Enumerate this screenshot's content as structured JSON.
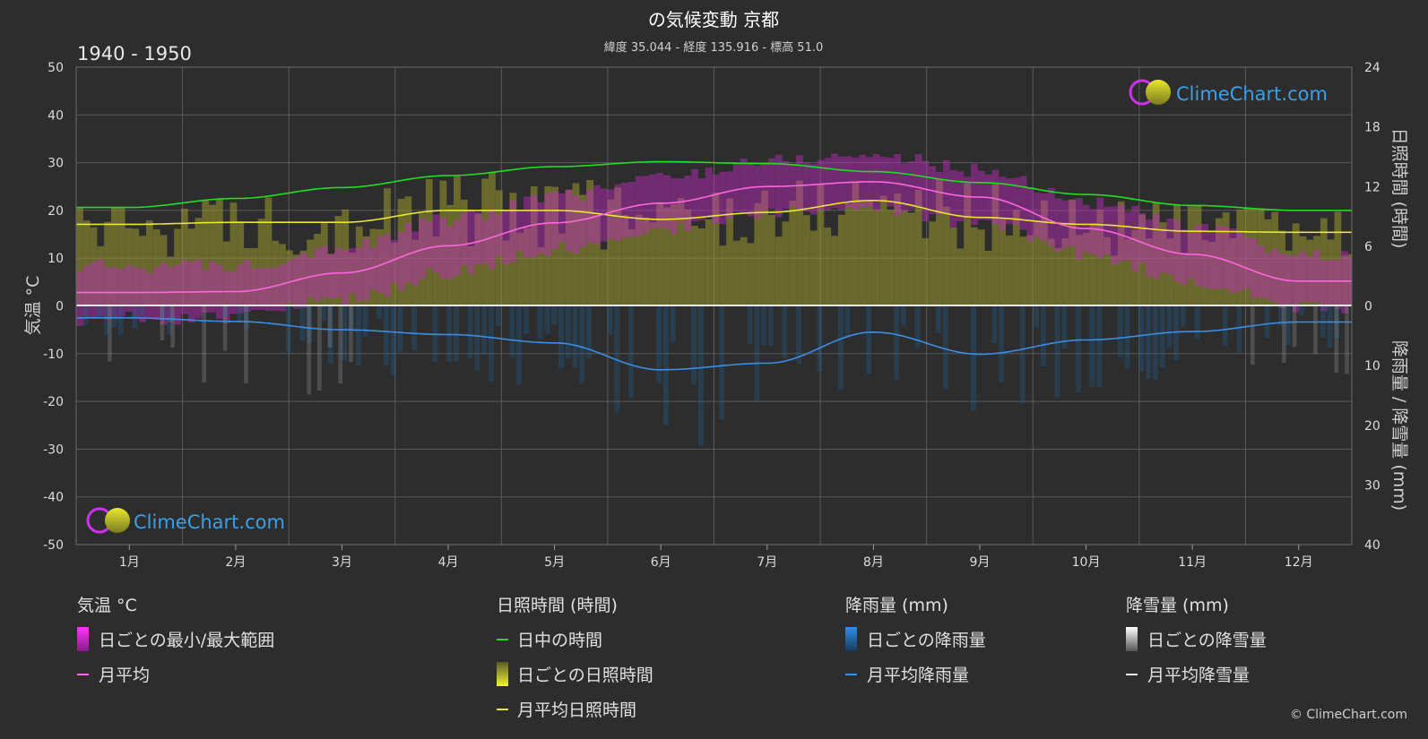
{
  "header": {
    "title": "の気候変動 京都",
    "subtitle": "緯度 35.044 - 経度 135.916 - 標高 51.0",
    "period": "1940 - 1950"
  },
  "brand": {
    "name": "ClimeChart.com",
    "copyright": "© ClimeChart.com"
  },
  "axes": {
    "left_title": "気温 °C",
    "right_top_title": "日照時間 (時間)",
    "right_bottom_title": "降雨量 / 降雪量 (mm)"
  },
  "legend": {
    "temp": {
      "heading": "気温 °C",
      "items": [
        "日ごとの最小/最大範囲",
        "月平均"
      ]
    },
    "sun": {
      "heading": "日照時間 (時間)",
      "items": [
        "日中の時間",
        "日ごとの日照時間",
        "月平均日照時間"
      ]
    },
    "rain": {
      "heading": "降雨量 (mm)",
      "items": [
        "日ごとの降雨量",
        "月平均降雨量"
      ]
    },
    "snow": {
      "heading": "降雪量 (mm)",
      "items": [
        "日ごとの降雪量",
        "月平均降雪量"
      ]
    }
  },
  "chart_data": {
    "type": "line",
    "categories": [
      "1月",
      "2月",
      "3月",
      "4月",
      "5月",
      "6月",
      "7月",
      "8月",
      "9月",
      "10月",
      "11月",
      "12月"
    ],
    "temp_axis": {
      "min": -50,
      "max": 50,
      "ticks": [
        50,
        40,
        30,
        20,
        10,
        0,
        -10,
        -20,
        -30,
        -40,
        -50
      ]
    },
    "sun_axis": {
      "min": 0,
      "max": 24,
      "ticks": [
        24,
        18,
        12,
        6,
        0
      ]
    },
    "precip_axis": {
      "min": 0,
      "max": 40,
      "ticks": [
        10,
        20,
        30,
        40
      ]
    },
    "series": [
      {
        "name": "日中の時間",
        "axis": "sun",
        "color": "#22dd22",
        "values": [
          9.9,
          10.8,
          11.9,
          13.1,
          14.0,
          14.5,
          14.3,
          13.5,
          12.4,
          11.2,
          10.1,
          9.6
        ]
      },
      {
        "name": "月平均日照時間",
        "axis": "sun",
        "color": "#e8e830",
        "values": [
          8.2,
          8.4,
          8.4,
          9.6,
          9.6,
          8.7,
          9.4,
          10.6,
          8.9,
          8.2,
          7.5,
          7.4
        ]
      },
      {
        "name": "月平均",
        "axis": "temp",
        "color": "#ff66dd",
        "values": [
          2.8,
          3.0,
          6.9,
          12.6,
          17.4,
          21.5,
          25.0,
          26.0,
          22.8,
          16.2,
          10.8,
          5.2
        ]
      },
      {
        "name": "月平均降雨量",
        "axis": "precip",
        "color": "#3a8ee6",
        "values": [
          2.0,
          2.6,
          4.0,
          4.8,
          6.2,
          10.7,
          9.6,
          4.4,
          8.1,
          5.7,
          4.3,
          2.7
        ]
      }
    ],
    "colors": {
      "temp_range": "#c42ac4",
      "sunshine_bars": "#9a9a30",
      "rain_bars": "#1f5f8f",
      "snow_bars": "#8a8a8a",
      "grid": "#5a5a5a"
    }
  }
}
